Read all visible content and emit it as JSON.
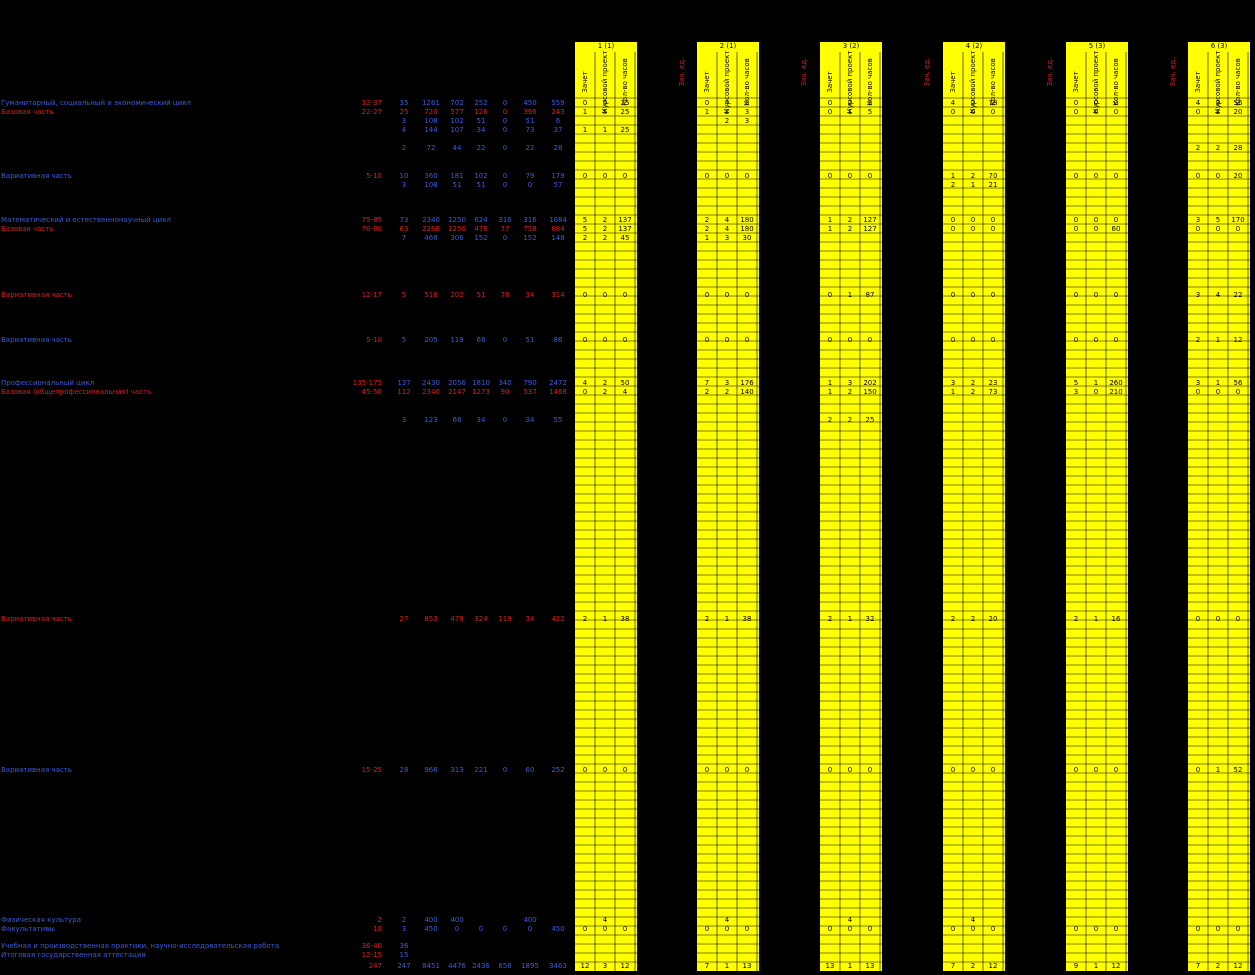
{
  "header": {
    "semesters": [
      "1 (1)",
      "2 (1)",
      "3 (2)",
      "4 (2)",
      "5 (3)",
      "6 (3)"
    ],
    "columns": [
      "Зачет",
      "Курсовой проект",
      "Кол-во часов"
    ],
    "credit_label": "Зач. ед."
  },
  "table": {
    "rows": [
      {
        "label": "Гуманитарный, социальный и экономический цикл",
        "code": "32-37",
        "color": "blue",
        "values": [
          35,
          1261,
          702,
          252,
          0,
          450,
          559
        ],
        "sems": [
          [
            0,
            5,
            25
          ],
          [
            0,
            4,
            5
          ],
          [
            0,
            2,
            5
          ],
          [
            4,
            2,
            78
          ],
          [
            0,
            0,
            0
          ],
          [
            4,
            3,
            56
          ]
        ]
      },
      {
        "label": "Базовая часть",
        "code": "22-27",
        "color": "red",
        "values": [
          25,
          720,
          577,
          126,
          0,
          396,
          243
        ],
        "sems": [
          [
            1,
            5,
            25
          ],
          [
            1,
            2,
            3
          ],
          [
            0,
            1,
            5
          ],
          [
            0,
            0,
            0
          ],
          [
            0,
            0,
            0
          ],
          [
            0,
            2,
            20
          ]
        ]
      },
      {
        "label": null,
        "code": null,
        "color": "blue",
        "values": [
          3,
          108,
          102,
          51,
          0,
          51,
          6
        ],
        "sems": [
          [
            null,
            null,
            null
          ],
          [
            null,
            2,
            3
          ],
          [
            null,
            null,
            null
          ],
          [
            null,
            null,
            null
          ],
          [
            null,
            null,
            null
          ],
          [
            null,
            null,
            null
          ]
        ]
      },
      {
        "label": null,
        "code": null,
        "color": "blue",
        "values": [
          4,
          144,
          107,
          34,
          0,
          73,
          37
        ],
        "sems": [
          [
            1,
            1,
            25
          ],
          [
            null,
            null,
            null
          ],
          [
            null,
            null,
            null
          ],
          [
            null,
            null,
            null
          ],
          [
            null,
            null,
            null
          ],
          [
            null,
            null,
            null
          ]
        ]
      },
      {
        "label": null,
        "code": null,
        "color": "blue",
        "values": [
          2,
          72,
          44,
          22,
          0,
          22,
          28
        ],
        "sems": [
          [
            null,
            null,
            null
          ],
          [
            null,
            null,
            null
          ],
          [
            null,
            null,
            null
          ],
          [
            null,
            null,
            null
          ],
          [
            null,
            null,
            null
          ],
          [
            2,
            2,
            28
          ]
        ]
      },
      {
        "label": "Вариативная часть",
        "code": "5-10",
        "color": "blue",
        "values": [
          10,
          360,
          181,
          102,
          0,
          79,
          179
        ],
        "sems": [
          [
            0,
            0,
            0
          ],
          [
            0,
            0,
            0
          ],
          [
            0,
            0,
            0
          ],
          [
            1,
            2,
            70
          ],
          [
            0,
            0,
            0
          ],
          [
            0,
            0,
            20
          ]
        ]
      },
      {
        "label": null,
        "code": null,
        "color": "blue",
        "values": [
          3,
          108,
          51,
          51,
          0,
          0,
          57
        ],
        "sems": [
          [
            null,
            null,
            null
          ],
          [
            null,
            null,
            null
          ],
          [
            null,
            null,
            null
          ],
          [
            2,
            1,
            21
          ],
          [
            null,
            null,
            null
          ],
          [
            null,
            null,
            null
          ]
        ]
      },
      {
        "label": "Математический и естественнонаучный цикл",
        "code": "75-85",
        "color": "blue",
        "values": [
          73,
          2340,
          1250,
          624,
          316,
          316,
          1084
        ],
        "sems": [
          [
            5,
            2,
            137
          ],
          [
            2,
            4,
            180
          ],
          [
            1,
            2,
            127
          ],
          [
            0,
            0,
            0
          ],
          [
            0,
            0,
            0
          ],
          [
            3,
            5,
            170
          ]
        ]
      },
      {
        "label": "Базовая часть",
        "code": "70-80",
        "color": "red",
        "values": [
          63,
          2268,
          1250,
          476,
          77,
          758,
          684
        ],
        "sems": [
          [
            5,
            2,
            137
          ],
          [
            2,
            4,
            180
          ],
          [
            1,
            2,
            127
          ],
          [
            0,
            0,
            0
          ],
          [
            0,
            0,
            60
          ],
          [
            0,
            0,
            0
          ]
        ]
      },
      {
        "label": null,
        "code": null,
        "color": "blue",
        "values": [
          7,
          468,
          306,
          152,
          0,
          152,
          148
        ],
        "sems": [
          [
            2,
            2,
            45
          ],
          [
            1,
            3,
            30
          ],
          [
            null,
            null,
            null
          ],
          [
            null,
            null,
            null
          ],
          [
            null,
            null,
            null
          ],
          [
            null,
            null,
            null
          ]
        ]
      },
      {
        "label": "Вариативная часть",
        "code": "12-17",
        "color": "red",
        "values": [
          5,
          516,
          202,
          51,
          78,
          34,
          314
        ],
        "sems": [
          [
            0,
            0,
            0
          ],
          [
            0,
            0,
            0
          ],
          [
            0,
            1,
            87
          ],
          [
            0,
            0,
            0
          ],
          [
            0,
            0,
            0
          ],
          [
            3,
            4,
            22
          ]
        ]
      },
      {
        "label": "Вариативная часть",
        "code": "5-10",
        "color": "blue",
        "values": [
          5,
          205,
          119,
          68,
          0,
          51,
          86
        ],
        "sems": [
          [
            0,
            0,
            0
          ],
          [
            0,
            0,
            0
          ],
          [
            0,
            0,
            0
          ],
          [
            0,
            0,
            0
          ],
          [
            0,
            0,
            0
          ],
          [
            2,
            1,
            12
          ]
        ]
      },
      {
        "label": "Профессиональный цикл",
        "code": "135-175",
        "color": "blue",
        "values": [
          137,
          2430,
          2056,
          1810,
          340,
          790,
          2472
        ],
        "sems": [
          [
            4,
            2,
            50
          ],
          [
            7,
            3,
            176
          ],
          [
            1,
            3,
            202
          ],
          [
            3,
            2,
            23
          ],
          [
            5,
            1,
            260
          ],
          [
            3,
            1,
            56
          ]
        ]
      },
      {
        "label": "Базовая (общепрофессиональная) часть",
        "code": "45-50",
        "color": "red",
        "values": [
          112,
          2340,
          2147,
          1273,
          90,
          537,
          1468
        ],
        "sems": [
          [
            0,
            2,
            4
          ],
          [
            2,
            2,
            140
          ],
          [
            1,
            2,
            150
          ],
          [
            1,
            2,
            73
          ],
          [
            3,
            0,
            210
          ],
          [
            0,
            0,
            0
          ]
        ]
      },
      {
        "label": null,
        "code": null,
        "color": "blue",
        "values": [
          3,
          123,
          68,
          34,
          0,
          34,
          55
        ],
        "sems": [
          [
            null,
            null,
            null
          ],
          [
            null,
            null,
            null
          ],
          [
            2,
            2,
            25
          ],
          [
            null,
            null,
            null
          ],
          [
            null,
            null,
            null
          ],
          [
            null,
            null,
            null
          ]
        ]
      },
      {
        "label": "Вариативная часть",
        "code": null,
        "color": "red",
        "values": [
          27,
          853,
          478,
          324,
          119,
          34,
          422
        ],
        "sems": [
          [
            2,
            1,
            38
          ],
          [
            2,
            1,
            38
          ],
          [
            2,
            1,
            32
          ],
          [
            2,
            2,
            20
          ],
          [
            2,
            1,
            16
          ],
          [
            0,
            0,
            0
          ]
        ]
      },
      {
        "label": "Вариативная часть",
        "code": "15-25",
        "color": "blue",
        "values": [
          28,
          966,
          313,
          221,
          0,
          60,
          252
        ],
        "sems": [
          [
            0,
            0,
            0
          ],
          [
            0,
            0,
            0
          ],
          [
            0,
            0,
            0
          ],
          [
            0,
            0,
            0
          ],
          [
            0,
            0,
            0
          ],
          [
            0,
            1,
            52
          ]
        ]
      },
      {
        "label": "Физическая культура",
        "code": "2",
        "color": "blue",
        "values": [
          2,
          400,
          400,
          null,
          null,
          400,
          null
        ],
        "sems": [
          [
            null,
            4,
            null
          ],
          [
            null,
            4,
            null
          ],
          [
            null,
            4,
            null
          ],
          [
            null,
            4,
            null
          ],
          [
            null,
            null,
            null
          ],
          [
            null,
            null,
            null
          ]
        ]
      },
      {
        "label": "Факультативы",
        "code": "10",
        "color": "blue",
        "values": [
          3,
          450,
          0,
          0,
          0,
          0,
          450
        ],
        "sems": [
          [
            0,
            0,
            0
          ],
          [
            0,
            0,
            0
          ],
          [
            0,
            0,
            0
          ],
          [
            0,
            0,
            0
          ],
          [
            0,
            0,
            0
          ],
          [
            0,
            0,
            0
          ]
        ]
      },
      {
        "label": "Учебная и производственная практики, научно-исследовательская работа",
        "code": "36-40",
        "color": "blue",
        "values": [
          36,
          null,
          null,
          null,
          null,
          null,
          null
        ],
        "sems": [
          [
            null,
            null,
            null
          ],
          [
            null,
            null,
            null
          ],
          [
            null,
            null,
            null
          ],
          [
            null,
            null,
            null
          ],
          [
            null,
            null,
            null
          ],
          [
            null,
            null,
            null
          ]
        ]
      },
      {
        "label": "Итоговая государственная аттестация",
        "code": "12-15",
        "color": "blue",
        "values": [
          15,
          null,
          null,
          null,
          null,
          null,
          null
        ],
        "sems": [
          [
            null,
            null,
            null
          ],
          [
            null,
            null,
            null
          ],
          [
            null,
            null,
            null
          ],
          [
            null,
            null,
            null
          ],
          [
            null,
            null,
            null
          ],
          [
            null,
            null,
            null
          ]
        ]
      },
      {
        "label": null,
        "code": "247",
        "color": "blue",
        "values": [
          247,
          8451,
          4476,
          2436,
          656,
          1895,
          3463
        ],
        "sems": [
          [
            12,
            3,
            12
          ],
          [
            7,
            1,
            13
          ],
          [
            13,
            1,
            13
          ],
          [
            7,
            2,
            12
          ],
          [
            9,
            1,
            12
          ],
          [
            7,
            2,
            12
          ]
        ]
      }
    ]
  }
}
